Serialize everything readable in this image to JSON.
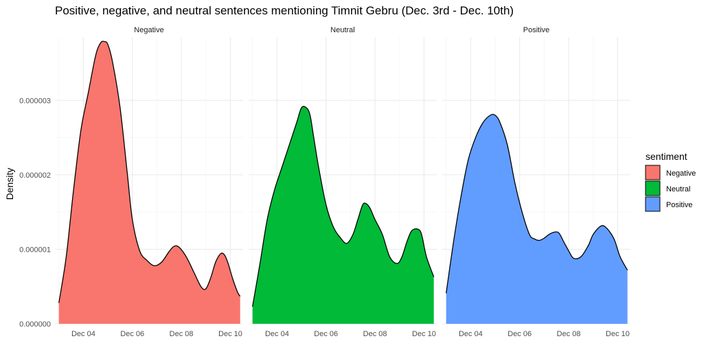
{
  "chart_data": {
    "type": "area",
    "title": "Positive, negative, and neutral sentences mentioning Timnit Gebru (Dec. 3rd - Dec. 10th)",
    "xlabel": "",
    "ylabel": "Density",
    "xlim": [
      2.84,
      10.52
    ],
    "ylim": [
      0,
      3.85e-06
    ],
    "x_ticks": [
      {
        "value": 4,
        "label": "Dec 04"
      },
      {
        "value": 6,
        "label": "Dec 06"
      },
      {
        "value": 8,
        "label": "Dec 08"
      },
      {
        "value": 10,
        "label": "Dec 10"
      }
    ],
    "y_ticks": [
      {
        "value": 0,
        "label": "0.000000"
      },
      {
        "value": 1e-06,
        "label": "0.000001"
      },
      {
        "value": 2e-06,
        "label": "0.000002"
      },
      {
        "value": 3e-06,
        "label": "0.000003"
      }
    ],
    "grid": true,
    "legend": {
      "title": "sentiment",
      "position": "right",
      "entries": [
        {
          "label": "Negative",
          "color": "#F8766D"
        },
        {
          "label": "Neutral",
          "color": "#00BA38"
        },
        {
          "label": "Positive",
          "color": "#619CFF"
        }
      ]
    },
    "series": [
      {
        "name": "Negative",
        "color": "#F8766D",
        "x": [
          3.0,
          3.3,
          3.6,
          3.9,
          4.2,
          4.5,
          4.7,
          4.85,
          5.0,
          5.2,
          5.5,
          5.8,
          6.0,
          6.3,
          6.6,
          6.9,
          7.2,
          7.5,
          7.7,
          7.9,
          8.2,
          8.5,
          8.8,
          9.0,
          9.2,
          9.4,
          9.6,
          9.75,
          9.9,
          10.1,
          10.3,
          10.4
        ],
        "y": [
          2.8e-07,
          9e-07,
          1.8e-06,
          2.6e-06,
          3.1e-06,
          3.6e-06,
          3.77e-06,
          3.79e-06,
          3.75e-06,
          3.5e-06,
          2.9e-06,
          2e-06,
          1.4e-06,
          9.8e-07,
          8.5e-07,
          7.8e-07,
          8.3e-07,
          9.7e-07,
          1.04e-06,
          1.03e-06,
          9e-07,
          7e-07,
          5e-07,
          4.7e-07,
          6.2e-07,
          8.3e-07,
          9.4e-07,
          9.3e-07,
          8.2e-07,
          6e-07,
          4.2e-07,
          3.7e-07
        ]
      },
      {
        "name": "Neutral",
        "color": "#00BA38",
        "x": [
          3.0,
          3.3,
          3.6,
          3.9,
          4.2,
          4.5,
          4.8,
          5.0,
          5.2,
          5.35,
          5.5,
          5.7,
          6.0,
          6.3,
          6.6,
          6.85,
          7.1,
          7.3,
          7.5,
          7.65,
          7.8,
          8.0,
          8.3,
          8.6,
          8.9,
          9.1,
          9.3,
          9.5,
          9.75,
          9.9,
          10.1,
          10.4
        ],
        "y": [
          2.3e-07,
          8e-07,
          1.4e-06,
          1.8e-06,
          2.1e-06,
          2.4e-06,
          2.7e-06,
          2.9e-06,
          2.9e-06,
          2.8e-06,
          2.5e-06,
          2.1e-06,
          1.6e-06,
          1.3e-06,
          1.15e-06,
          1.08e-06,
          1.2e-06,
          1.4e-06,
          1.6e-06,
          1.61e-06,
          1.55e-06,
          1.4e-06,
          1.2e-06,
          9e-07,
          8.1e-07,
          9e-07,
          1.1e-06,
          1.25e-06,
          1.27e-06,
          1.2e-06,
          9e-07,
          6.3e-07
        ]
      },
      {
        "name": "Positive",
        "color": "#619CFF",
        "x": [
          3.0,
          3.3,
          3.6,
          3.9,
          4.2,
          4.5,
          4.8,
          5.0,
          5.2,
          5.5,
          5.8,
          6.1,
          6.4,
          6.6,
          6.8,
          7.0,
          7.2,
          7.4,
          7.6,
          7.8,
          8.0,
          8.2,
          8.5,
          8.8,
          9.0,
          9.3,
          9.5,
          9.75,
          9.9,
          10.1,
          10.4
        ],
        "y": [
          4.1e-07,
          1.1e-06,
          1.7e-06,
          2.2e-06,
          2.5e-06,
          2.7e-06,
          2.8e-06,
          2.8e-06,
          2.7e-06,
          2.4e-06,
          1.9e-06,
          1.5e-06,
          1.2e-06,
          1.14e-06,
          1.12e-06,
          1.15e-06,
          1.2e-06,
          1.23e-06,
          1.22e-06,
          1.1e-06,
          9.8e-07,
          8.8e-07,
          9e-07,
          1.05e-06,
          1.2e-06,
          1.31e-06,
          1.3e-06,
          1.2e-06,
          1.1e-06,
          9e-07,
          7.2e-07
        ]
      }
    ]
  }
}
